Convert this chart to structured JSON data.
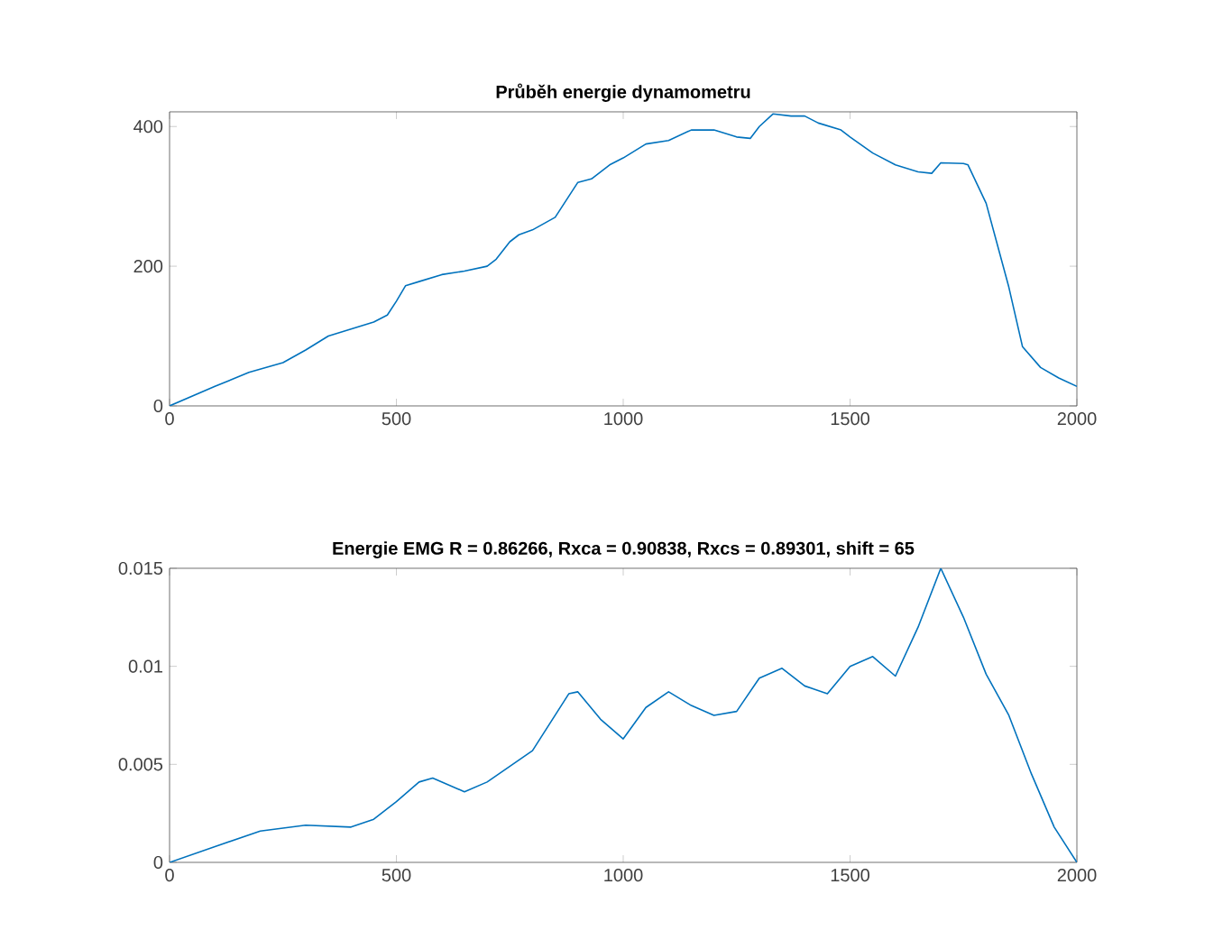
{
  "chart_data": [
    {
      "type": "line",
      "title": "Průběh energie dynamometru",
      "color": "#0072bd",
      "xlim": [
        0,
        2000
      ],
      "ylim": [
        0,
        421
      ],
      "xticks": [
        0,
        500,
        1000,
        1500,
        2000
      ],
      "yticks": [
        0,
        200,
        400
      ],
      "x": [
        0,
        100,
        175,
        250,
        300,
        350,
        400,
        450,
        480,
        500,
        520,
        550,
        600,
        650,
        700,
        720,
        750,
        770,
        800,
        850,
        880,
        900,
        930,
        970,
        1000,
        1050,
        1100,
        1150,
        1200,
        1250,
        1280,
        1300,
        1330,
        1370,
        1400,
        1430,
        1480,
        1500,
        1550,
        1600,
        1650,
        1680,
        1700,
        1750,
        1760,
        1800,
        1850,
        1880,
        1920,
        1960,
        2000
      ],
      "values": [
        0,
        28,
        48,
        62,
        80,
        100,
        110,
        120,
        130,
        150,
        172,
        178,
        188,
        193,
        200,
        210,
        235,
        245,
        252,
        270,
        300,
        320,
        325,
        345,
        355,
        375,
        380,
        395,
        395,
        385,
        383,
        400,
        418,
        415,
        415,
        405,
        395,
        385,
        362,
        345,
        335,
        333,
        348,
        347,
        345,
        290,
        170,
        85,
        55,
        40,
        28
      ]
    },
    {
      "type": "line",
      "title": "Energie EMG R = 0.86266, Rxca = 0.90838, Rxcs = 0.89301, shift = 65",
      "color": "#0072bd",
      "xlim": [
        0,
        2000
      ],
      "ylim": [
        0,
        0.015
      ],
      "xticks": [
        0,
        500,
        1000,
        1500,
        2000
      ],
      "yticks": [
        0,
        0.005,
        0.01,
        0.015
      ],
      "x": [
        0,
        100,
        200,
        300,
        400,
        450,
        500,
        550,
        580,
        650,
        700,
        800,
        880,
        900,
        950,
        1000,
        1050,
        1100,
        1150,
        1200,
        1250,
        1300,
        1350,
        1400,
        1450,
        1500,
        1550,
        1600,
        1650,
        1700,
        1750,
        1800,
        1850,
        1900,
        1950,
        2000
      ],
      "values": [
        0,
        0.0008,
        0.0016,
        0.0019,
        0.0018,
        0.0022,
        0.0031,
        0.0041,
        0.0043,
        0.0036,
        0.0041,
        0.0057,
        0.0086,
        0.0087,
        0.0073,
        0.0063,
        0.0079,
        0.0087,
        0.008,
        0.0075,
        0.0077,
        0.0094,
        0.0099,
        0.009,
        0.0086,
        0.01,
        0.0105,
        0.0095,
        0.012,
        0.015,
        0.0125,
        0.0096,
        0.0075,
        0.0045,
        0.0018,
        0
      ]
    }
  ]
}
